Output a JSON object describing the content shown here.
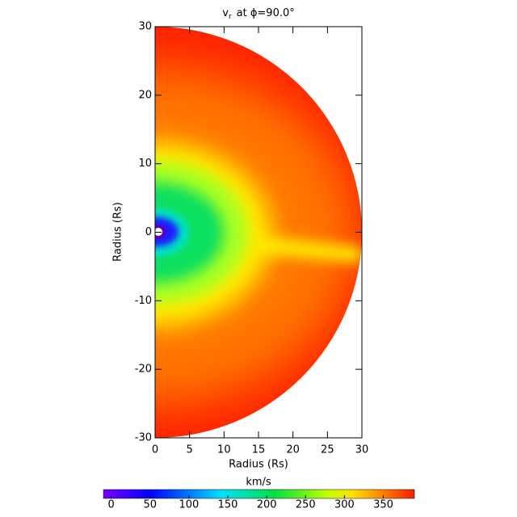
{
  "chart_data": {
    "type": "polar-field",
    "title_parts": [
      "v",
      "r",
      "at ϕ=90.0°"
    ],
    "xlabel": "Radius (Rs)",
    "ylabel": "Radius (Rs)",
    "xlim": [
      0,
      30
    ],
    "ylim": [
      -30,
      30
    ],
    "xticks": [
      0,
      5,
      10,
      15,
      20,
      25,
      30
    ],
    "yticks": [
      -30,
      -20,
      -10,
      0,
      10,
      20,
      30
    ],
    "colorbar": {
      "label": "km/s",
      "lim": [
        -10,
        390
      ],
      "ticks": [
        0,
        50,
        100,
        150,
        200,
        250,
        300,
        350
      ]
    }
  }
}
